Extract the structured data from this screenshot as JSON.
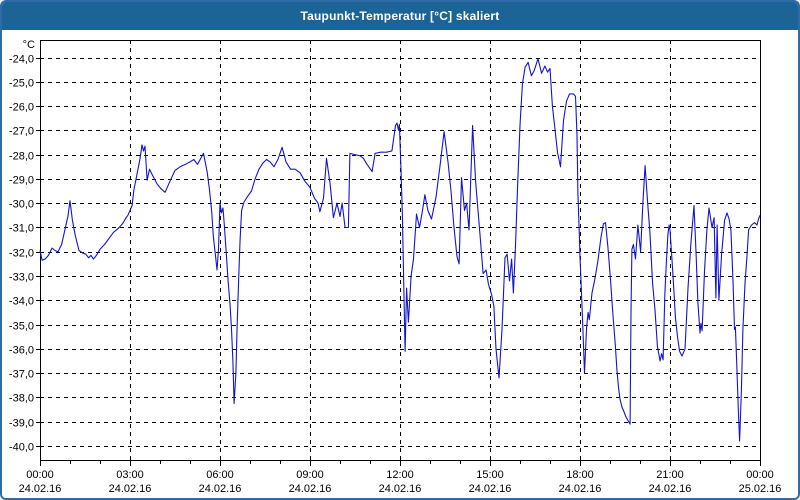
{
  "window": {
    "title": "Taupunkt-Temperatur [°C] skaliert"
  },
  "colors": {
    "window_border": "#2f6ba6",
    "titlebar_bg": "#1c6496",
    "titlebar_text": "#ffffff",
    "plot_bg": "#ffffff",
    "plot_border": "#000000",
    "grid": "#000000",
    "tick_label": "#000000",
    "line": "#1414cc"
  },
  "axes": {
    "y_unit": "°C",
    "y_ticks": [
      {
        "value": -24,
        "label": "-24,0"
      },
      {
        "value": -25,
        "label": "-25,0"
      },
      {
        "value": -26,
        "label": "-26,0"
      },
      {
        "value": -27,
        "label": "-27,0"
      },
      {
        "value": -28,
        "label": "-28,0"
      },
      {
        "value": -29,
        "label": "-29,0"
      },
      {
        "value": -30,
        "label": "-30,0"
      },
      {
        "value": -31,
        "label": "-31,0"
      },
      {
        "value": -32,
        "label": "-32,0"
      },
      {
        "value": -33,
        "label": "-33,0"
      },
      {
        "value": -34,
        "label": "-34,0"
      },
      {
        "value": -35,
        "label": "-35,0"
      },
      {
        "value": -36,
        "label": "-36,0"
      },
      {
        "value": -37,
        "label": "-37,0"
      },
      {
        "value": -38,
        "label": "-38,0"
      },
      {
        "value": -39,
        "label": "-39,0"
      },
      {
        "value": -40,
        "label": "-40,0"
      }
    ],
    "x_ticks": [
      {
        "hour": 0,
        "time": "00:00",
        "date": "24.02.16"
      },
      {
        "hour": 3,
        "time": "03:00",
        "date": "24.02.16"
      },
      {
        "hour": 6,
        "time": "06:00",
        "date": "24.02.16"
      },
      {
        "hour": 9,
        "time": "09:00",
        "date": "24.02.16"
      },
      {
        "hour": 12,
        "time": "12:00",
        "date": "24.02.16"
      },
      {
        "hour": 15,
        "time": "15:00",
        "date": "24.02.16"
      },
      {
        "hour": 18,
        "time": "18:00",
        "date": "24.02.16"
      },
      {
        "hour": 21,
        "time": "21:00",
        "date": "24.02.16"
      },
      {
        "hour": 24,
        "time": "00:00",
        "date": "25.02.16"
      }
    ],
    "minor_x_step_hours": 1
  },
  "chart_data": {
    "type": "line",
    "title": "Taupunkt-Temperatur [°C] skaliert",
    "ylabel": "°C",
    "xlim_hours": [
      0,
      24
    ],
    "ylim": [
      -40.6,
      -23.3
    ],
    "grid": true,
    "points": [
      [
        0.0,
        -31.95
      ],
      [
        0.07,
        -32.35
      ],
      [
        0.17,
        -32.3
      ],
      [
        0.28,
        -32.15
      ],
      [
        0.4,
        -31.85
      ],
      [
        0.5,
        -31.95
      ],
      [
        0.6,
        -32.0
      ],
      [
        0.72,
        -31.7
      ],
      [
        0.83,
        -31.1
      ],
      [
        0.93,
        -30.55
      ],
      [
        1.0,
        -29.9
      ],
      [
        1.08,
        -30.7
      ],
      [
        1.17,
        -31.3
      ],
      [
        1.3,
        -31.95
      ],
      [
        1.42,
        -32.05
      ],
      [
        1.53,
        -32.1
      ],
      [
        1.62,
        -32.25
      ],
      [
        1.7,
        -32.15
      ],
      [
        1.78,
        -32.3
      ],
      [
        1.88,
        -32.15
      ],
      [
        2.0,
        -31.9
      ],
      [
        2.15,
        -31.7
      ],
      [
        2.3,
        -31.45
      ],
      [
        2.45,
        -31.2
      ],
      [
        2.6,
        -31.05
      ],
      [
        2.75,
        -30.85
      ],
      [
        2.87,
        -30.6
      ],
      [
        2.93,
        -30.5
      ],
      [
        3.07,
        -30.1
      ],
      [
        3.13,
        -29.45
      ],
      [
        3.17,
        -29.2
      ],
      [
        3.25,
        -28.7
      ],
      [
        3.33,
        -28.2
      ],
      [
        3.4,
        -27.6
      ],
      [
        3.45,
        -27.85
      ],
      [
        3.5,
        -27.65
      ],
      [
        3.57,
        -29.05
      ],
      [
        3.65,
        -28.6
      ],
      [
        3.75,
        -28.85
      ],
      [
        3.9,
        -29.2
      ],
      [
        4.03,
        -29.4
      ],
      [
        4.17,
        -29.55
      ],
      [
        4.33,
        -29.1
      ],
      [
        4.5,
        -28.65
      ],
      [
        4.67,
        -28.5
      ],
      [
        4.85,
        -28.4
      ],
      [
        5.0,
        -28.3
      ],
      [
        5.13,
        -28.2
      ],
      [
        5.25,
        -28.4
      ],
      [
        5.45,
        -27.95
      ],
      [
        5.57,
        -28.7
      ],
      [
        5.65,
        -29.45
      ],
      [
        5.72,
        -30.3
      ],
      [
        5.78,
        -31.4
      ],
      [
        5.84,
        -32.05
      ],
      [
        5.9,
        -32.75
      ],
      [
        5.95,
        -31.9
      ],
      [
        6.0,
        -30.0
      ],
      [
        6.05,
        -30.4
      ],
      [
        6.1,
        -30.2
      ],
      [
        6.15,
        -31.0
      ],
      [
        6.2,
        -31.9
      ],
      [
        6.27,
        -33.2
      ],
      [
        6.33,
        -34.1
      ],
      [
        6.38,
        -35.1
      ],
      [
        6.43,
        -36.5
      ],
      [
        6.47,
        -38.25
      ],
      [
        6.53,
        -37.0
      ],
      [
        6.57,
        -35.1
      ],
      [
        6.62,
        -33.2
      ],
      [
        6.67,
        -31.5
      ],
      [
        6.72,
        -30.3
      ],
      [
        6.8,
        -29.95
      ],
      [
        6.93,
        -29.7
      ],
      [
        7.05,
        -29.5
      ],
      [
        7.17,
        -29.0
      ],
      [
        7.3,
        -28.6
      ],
      [
        7.43,
        -28.35
      ],
      [
        7.55,
        -28.2
      ],
      [
        7.67,
        -28.3
      ],
      [
        7.8,
        -28.5
      ],
      [
        7.93,
        -28.2
      ],
      [
        8.07,
        -27.7
      ],
      [
        8.2,
        -28.3
      ],
      [
        8.35,
        -28.6
      ],
      [
        8.5,
        -28.6
      ],
      [
        8.67,
        -28.75
      ],
      [
        8.83,
        -29.1
      ],
      [
        9.0,
        -29.35
      ],
      [
        9.15,
        -29.8
      ],
      [
        9.27,
        -30.0
      ],
      [
        9.33,
        -30.35
      ],
      [
        9.45,
        -29.8
      ],
      [
        9.55,
        -28.15
      ],
      [
        9.67,
        -29.2
      ],
      [
        9.78,
        -30.6
      ],
      [
        9.9,
        -30.0
      ],
      [
        10.0,
        -30.55
      ],
      [
        10.07,
        -30.0
      ],
      [
        10.17,
        -31.0
      ],
      [
        10.28,
        -31.0
      ],
      [
        10.33,
        -27.95
      ],
      [
        10.5,
        -28.0
      ],
      [
        10.67,
        -28.05
      ],
      [
        10.78,
        -28.15
      ],
      [
        10.9,
        -28.4
      ],
      [
        11.07,
        -28.7
      ],
      [
        11.17,
        -27.95
      ],
      [
        11.35,
        -27.9
      ],
      [
        11.55,
        -27.9
      ],
      [
        11.73,
        -27.85
      ],
      [
        11.85,
        -26.8
      ],
      [
        11.9,
        -26.7
      ],
      [
        11.95,
        -27.0
      ],
      [
        11.98,
        -26.75
      ],
      [
        12.03,
        -28.5
      ],
      [
        12.08,
        -30.5
      ],
      [
        12.12,
        -33.0
      ],
      [
        12.17,
        -36.1
      ],
      [
        12.22,
        -33.5
      ],
      [
        12.28,
        -34.9
      ],
      [
        12.37,
        -33.0
      ],
      [
        12.45,
        -32.3
      ],
      [
        12.55,
        -30.45
      ],
      [
        12.65,
        -31.0
      ],
      [
        12.75,
        -30.3
      ],
      [
        12.83,
        -29.65
      ],
      [
        12.93,
        -30.3
      ],
      [
        13.05,
        -30.65
      ],
      [
        13.2,
        -29.75
      ],
      [
        13.33,
        -28.5
      ],
      [
        13.47,
        -27.05
      ],
      [
        13.6,
        -28.3
      ],
      [
        13.7,
        -29.5
      ],
      [
        13.8,
        -31.0
      ],
      [
        13.9,
        -32.2
      ],
      [
        13.97,
        -32.5
      ],
      [
        14.05,
        -28.95
      ],
      [
        14.15,
        -30.3
      ],
      [
        14.22,
        -30.0
      ],
      [
        14.3,
        -31.1
      ],
      [
        14.42,
        -26.8
      ],
      [
        14.52,
        -29.1
      ],
      [
        14.6,
        -30.3
      ],
      [
        14.68,
        -31.5
      ],
      [
        14.77,
        -32.9
      ],
      [
        14.87,
        -32.75
      ],
      [
        14.95,
        -33.35
      ],
      [
        15.05,
        -33.75
      ],
      [
        15.13,
        -34.25
      ],
      [
        15.2,
        -36.0
      ],
      [
        15.3,
        -37.2
      ],
      [
        15.4,
        -35.2
      ],
      [
        15.5,
        -32.25
      ],
      [
        15.57,
        -32.1
      ],
      [
        15.65,
        -33.2
      ],
      [
        15.72,
        -32.3
      ],
      [
        15.78,
        -33.7
      ],
      [
        15.85,
        -31.75
      ],
      [
        15.92,
        -29.3
      ],
      [
        16.0,
        -26.8
      ],
      [
        16.08,
        -25.1
      ],
      [
        16.17,
        -24.4
      ],
      [
        16.27,
        -24.2
      ],
      [
        16.38,
        -24.75
      ],
      [
        16.47,
        -24.55
      ],
      [
        16.6,
        -24.05
      ],
      [
        16.72,
        -24.65
      ],
      [
        16.83,
        -24.35
      ],
      [
        16.92,
        -24.6
      ],
      [
        17.0,
        -24.45
      ],
      [
        17.08,
        -26.0
      ],
      [
        17.17,
        -27.0
      ],
      [
        17.25,
        -27.9
      ],
      [
        17.35,
        -28.5
      ],
      [
        17.45,
        -26.6
      ],
      [
        17.55,
        -25.8
      ],
      [
        17.65,
        -25.5
      ],
      [
        17.78,
        -25.5
      ],
      [
        17.85,
        -25.6
      ],
      [
        17.9,
        -27.2
      ],
      [
        17.93,
        -29.6
      ],
      [
        17.97,
        -31.0
      ],
      [
        18.0,
        -32.2
      ],
      [
        18.05,
        -33.7
      ],
      [
        18.1,
        -35.3
      ],
      [
        18.15,
        -37.0
      ],
      [
        18.22,
        -35.1
      ],
      [
        18.27,
        -34.5
      ],
      [
        18.31,
        -34.8
      ],
      [
        18.4,
        -33.7
      ],
      [
        18.5,
        -33.1
      ],
      [
        18.6,
        -32.35
      ],
      [
        18.7,
        -31.4
      ],
      [
        18.78,
        -30.85
      ],
      [
        18.85,
        -30.8
      ],
      [
        18.93,
        -31.8
      ],
      [
        19.02,
        -33.2
      ],
      [
        19.08,
        -34.3
      ],
      [
        19.13,
        -35.1
      ],
      [
        19.18,
        -35.9
      ],
      [
        19.23,
        -36.85
      ],
      [
        19.28,
        -37.55
      ],
      [
        19.33,
        -38.05
      ],
      [
        19.4,
        -38.4
      ],
      [
        19.47,
        -38.6
      ],
      [
        19.53,
        -38.8
      ],
      [
        19.6,
        -38.95
      ],
      [
        19.67,
        -39.1
      ],
      [
        19.7,
        -34.5
      ],
      [
        19.73,
        -31.9
      ],
      [
        19.78,
        -31.7
      ],
      [
        19.85,
        -32.3
      ],
      [
        19.93,
        -30.9
      ],
      [
        20.02,
        -32.0
      ],
      [
        20.1,
        -29.9
      ],
      [
        20.17,
        -28.45
      ],
      [
        20.25,
        -29.9
      ],
      [
        20.33,
        -31.2
      ],
      [
        20.42,
        -33.3
      ],
      [
        20.5,
        -34.4
      ],
      [
        20.58,
        -35.9
      ],
      [
        20.67,
        -36.5
      ],
      [
        20.72,
        -36.2
      ],
      [
        20.77,
        -36.45
      ],
      [
        20.83,
        -33.7
      ],
      [
        20.88,
        -32.4
      ],
      [
        20.93,
        -31.3
      ],
      [
        20.97,
        -30.9
      ],
      [
        21.0,
        -31.1
      ],
      [
        21.07,
        -32.4
      ],
      [
        21.13,
        -33.6
      ],
      [
        21.18,
        -34.7
      ],
      [
        21.25,
        -35.5
      ],
      [
        21.32,
        -36.1
      ],
      [
        21.4,
        -36.3
      ],
      [
        21.5,
        -36.0
      ],
      [
        21.6,
        -33.5
      ],
      [
        21.7,
        -31.6
      ],
      [
        21.8,
        -30.1
      ],
      [
        21.87,
        -32.1
      ],
      [
        21.93,
        -34.1
      ],
      [
        22.0,
        -35.35
      ],
      [
        22.03,
        -34.95
      ],
      [
        22.07,
        -35.25
      ],
      [
        22.15,
        -32.8
      ],
      [
        22.23,
        -31.1
      ],
      [
        22.3,
        -30.2
      ],
      [
        22.4,
        -31.0
      ],
      [
        22.47,
        -30.6
      ],
      [
        22.53,
        -33.9
      ],
      [
        22.57,
        -30.9
      ],
      [
        22.63,
        -34.0
      ],
      [
        22.72,
        -32.1
      ],
      [
        22.82,
        -30.7
      ],
      [
        22.9,
        -30.4
      ],
      [
        22.97,
        -30.65
      ],
      [
        23.03,
        -31.1
      ],
      [
        23.1,
        -33.2
      ],
      [
        23.15,
        -35.2
      ],
      [
        23.18,
        -35.1
      ],
      [
        23.23,
        -36.8
      ],
      [
        23.28,
        -38.6
      ],
      [
        23.32,
        -39.8
      ],
      [
        23.38,
        -37.7
      ],
      [
        23.43,
        -35.2
      ],
      [
        23.5,
        -33.3
      ],
      [
        23.57,
        -32.1
      ],
      [
        23.62,
        -31.1
      ],
      [
        23.72,
        -30.9
      ],
      [
        23.82,
        -30.8
      ],
      [
        23.9,
        -30.9
      ],
      [
        23.95,
        -30.65
      ],
      [
        24.0,
        -30.5
      ]
    ]
  }
}
